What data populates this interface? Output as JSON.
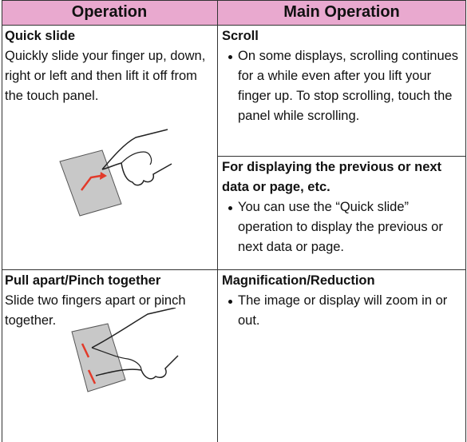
{
  "table": {
    "header": [
      "Operation",
      "Main Operation"
    ],
    "rows": [
      {
        "operation": {
          "title": "Quick slide",
          "description": "Quickly slide your finger up, down, right or left and then lift it off from the touch panel."
        },
        "main": [
          {
            "title": "Scroll",
            "bullet": "On some displays, scrolling continues for a while even after you lift your finger up. To stop scrolling, touch the panel while scrolling."
          },
          {
            "title": "For displaying the previous or next data or page, etc.",
            "bullet": "You can use the “Quick slide” operation to display the previous or next data or page."
          }
        ]
      },
      {
        "operation": {
          "title": "Pull apart/Pinch together",
          "description": "Slide two fingers apart or pinch together."
        },
        "main": [
          {
            "title": "Magnification/Reduction",
            "bullet": "The image or display will zoom in or out."
          }
        ]
      }
    ]
  }
}
